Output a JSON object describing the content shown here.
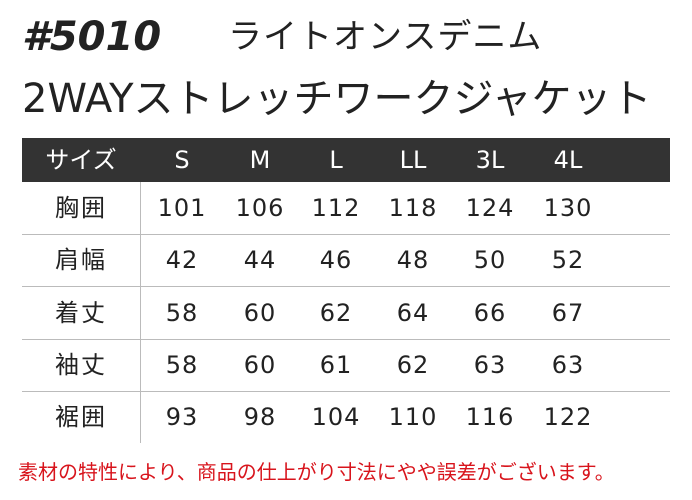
{
  "header": {
    "code": "#5010",
    "name": "ライトオンスデニム",
    "subtitle": "2WAYストレッチワークジャケット"
  },
  "table": {
    "columns": [
      "サイズ",
      "S",
      "M",
      "L",
      "LL",
      "3L",
      "4L"
    ],
    "rows": [
      [
        "胸囲",
        101,
        106,
        112,
        118,
        124,
        130
      ],
      [
        "肩幅",
        42,
        44,
        46,
        48,
        50,
        52
      ],
      [
        "着丈",
        58,
        60,
        62,
        64,
        66,
        67
      ],
      [
        "袖丈",
        58,
        60,
        61,
        62,
        63,
        63
      ],
      [
        "裾囲",
        93,
        98,
        104,
        110,
        116,
        122
      ]
    ]
  },
  "note": "素材の特性により、商品の仕上がり寸法にやや誤差がございます。"
}
